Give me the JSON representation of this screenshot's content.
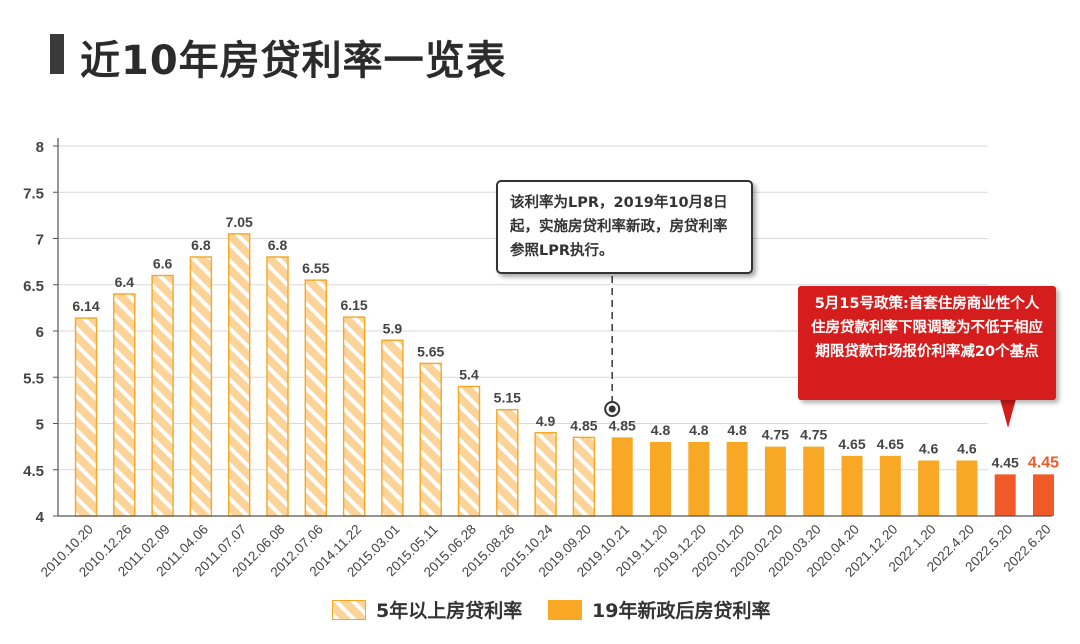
{
  "title": "近10年房贷利率一览表",
  "chart_data": {
    "type": "bar",
    "categories": [
      "2010.10.20",
      "2010.12.26",
      "2011.02.09",
      "2011.04.06",
      "2011.07.07",
      "2012.06.08",
      "2012.07.06",
      "2014.11.22",
      "2015.03.01",
      "2015.05.11",
      "2015.06.28",
      "2015.08.26",
      "2015.10.24",
      "2019.09.20",
      "2019.10.21",
      "2019.11.20",
      "2019.12.20",
      "2020.01.20",
      "2020.02.20",
      "2020.03.20",
      "2020.04.20",
      "2021.12.20",
      "2022.1.20",
      "2022.4.20",
      "2022.5.20",
      "2022.6.20"
    ],
    "values": [
      6.14,
      6.4,
      6.6,
      6.8,
      7.05,
      6.8,
      6.55,
      6.15,
      5.9,
      5.65,
      5.4,
      5.15,
      4.9,
      4.85,
      4.85,
      4.8,
      4.8,
      4.8,
      4.75,
      4.75,
      4.65,
      4.65,
      4.6,
      4.6,
      4.45,
      4.45
    ],
    "value_labels": [
      "6.14",
      "6.4",
      "6.6",
      "6.8",
      "7.05",
      "6.8",
      "6.55",
      "6.15",
      "5.9",
      "5.65",
      "5.4",
      "5.15",
      "4.9",
      "4.85",
      "4.85",
      "4.8",
      "4.8",
      "4.8",
      "4.75",
      "4.75",
      "4.65",
      "4.65",
      "4.6",
      "4.6",
      "4.45",
      "4.45"
    ],
    "series_type": [
      "a",
      "a",
      "a",
      "a",
      "a",
      "a",
      "a",
      "a",
      "a",
      "a",
      "a",
      "a",
      "a",
      "a",
      "b",
      "b",
      "b",
      "b",
      "b",
      "b",
      "b",
      "b",
      "b",
      "b",
      "c",
      "c"
    ],
    "ylim": [
      4,
      8
    ],
    "yticks": [
      "4",
      "4.5",
      "5",
      "5.5",
      "6",
      "6.5",
      "7",
      "7.5",
      "8"
    ],
    "grid": true,
    "legend": [
      {
        "name": "5年以上房贷利率"
      },
      {
        "name": "19年新政后房贷利率"
      }
    ],
    "legend_placement": "bottom",
    "colors": {
      "hatched_fill": "#fcd49a",
      "hatched_stripe": "#ffffff",
      "hatched_border": "#f5a623",
      "new_policy": "#f9a825",
      "recent": "#f05a28",
      "last_label": "#f05a28",
      "grid": "#d9d9d9",
      "axis": "#555555"
    },
    "annotations": {
      "lpr_note": "该利率为LPR，2019年10月8日起，实施房贷利率新政，房贷利率参照LPR执行。",
      "policy_note": "5月15号政策:首套住房商业性个人住房贷款利率下限调整为不低于相应期限贷款市场报价利率减20个基点"
    }
  }
}
